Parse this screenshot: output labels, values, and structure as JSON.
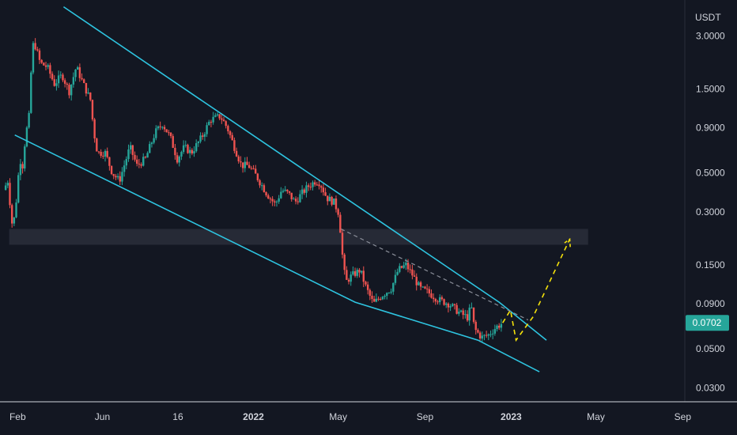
{
  "chart_data": {
    "type": "candlestick",
    "y_unit": "USDT",
    "y_scale": "log",
    "y_range": [
      0.025,
      4.8
    ],
    "x_range": [
      "2021-01-07",
      "2023-09-04"
    ],
    "price_ticks": [
      "3.0000",
      "1.5000",
      "0.9000",
      "0.5000",
      "0.3000",
      "0.1500",
      "0.0900",
      "0.0500",
      "0.0300"
    ],
    "time_ticks": [
      {
        "label": "Feb",
        "date": "2021-02-01",
        "bold": false
      },
      {
        "label": "Jun",
        "date": "2021-06-01",
        "bold": false
      },
      {
        "label": "16",
        "date": "2021-09-16",
        "bold": false
      },
      {
        "label": "2022",
        "date": "2022-01-01",
        "bold": true
      },
      {
        "label": "May",
        "date": "2022-05-01",
        "bold": false
      },
      {
        "label": "Sep",
        "date": "2022-09-01",
        "bold": false
      },
      {
        "label": "2023",
        "date": "2023-01-01",
        "bold": true
      },
      {
        "label": "May",
        "date": "2023-05-01",
        "bold": false
      },
      {
        "label": "Sep",
        "date": "2023-09-01",
        "bold": false
      }
    ],
    "last_price": {
      "value": 0.0702,
      "label": "0.0702"
    },
    "price_path": [
      [
        "2021-01-12",
        0.4
      ],
      [
        "2021-01-18",
        0.45
      ],
      [
        "2021-01-24",
        0.26
      ],
      [
        "2021-01-28",
        0.28
      ],
      [
        "2021-02-04",
        0.6
      ],
      [
        "2021-02-08",
        0.55
      ],
      [
        "2021-02-12",
        0.8
      ],
      [
        "2021-02-18",
        1.1
      ],
      [
        "2021-02-21",
        2.4
      ],
      [
        "2021-02-24",
        2.8
      ],
      [
        "2021-03-05",
        2.1
      ],
      [
        "2021-03-15",
        2.0
      ],
      [
        "2021-03-25",
        1.6
      ],
      [
        "2021-04-05",
        1.8
      ],
      [
        "2021-04-15",
        1.45
      ],
      [
        "2021-04-25",
        2.0
      ],
      [
        "2021-05-05",
        1.6
      ],
      [
        "2021-05-15",
        1.3
      ],
      [
        "2021-05-20",
        0.85
      ],
      [
        "2021-05-25",
        0.65
      ],
      [
        "2021-06-05",
        0.65
      ],
      [
        "2021-06-15",
        0.5
      ],
      [
        "2021-06-25",
        0.45
      ],
      [
        "2021-07-10",
        0.7
      ],
      [
        "2021-07-20",
        0.55
      ],
      [
        "2021-08-01",
        0.6
      ],
      [
        "2021-08-15",
        0.85
      ],
      [
        "2021-08-25",
        0.95
      ],
      [
        "2021-09-05",
        0.8
      ],
      [
        "2021-09-15",
        0.6
      ],
      [
        "2021-09-25",
        0.7
      ],
      [
        "2021-10-05",
        0.65
      ],
      [
        "2021-10-20",
        0.8
      ],
      [
        "2021-11-01",
        1.0
      ],
      [
        "2021-11-15",
        1.05
      ],
      [
        "2021-11-25",
        0.9
      ],
      [
        "2021-12-05",
        0.7
      ],
      [
        "2021-12-15",
        0.55
      ],
      [
        "2021-12-25",
        0.55
      ],
      [
        "2022-01-05",
        0.48
      ],
      [
        "2022-01-20",
        0.38
      ],
      [
        "2022-02-01",
        0.33
      ],
      [
        "2022-02-10",
        0.4
      ],
      [
        "2022-02-20",
        0.38
      ],
      [
        "2022-03-01",
        0.34
      ],
      [
        "2022-03-10",
        0.38
      ],
      [
        "2022-03-20",
        0.42
      ],
      [
        "2022-03-30",
        0.45
      ],
      [
        "2022-04-05",
        0.44
      ],
      [
        "2022-04-15",
        0.36
      ],
      [
        "2022-04-25",
        0.34
      ],
      [
        "2022-05-01",
        0.3
      ],
      [
        "2022-05-05",
        0.22
      ],
      [
        "2022-05-08",
        0.15
      ],
      [
        "2022-05-12",
        0.12
      ],
      [
        "2022-05-20",
        0.13
      ],
      [
        "2022-06-01",
        0.14
      ],
      [
        "2022-06-10",
        0.11
      ],
      [
        "2022-06-20",
        0.09
      ],
      [
        "2022-07-01",
        0.1
      ],
      [
        "2022-07-15",
        0.11
      ],
      [
        "2022-07-25",
        0.14
      ],
      [
        "2022-08-05",
        0.15
      ],
      [
        "2022-08-15",
        0.13
      ],
      [
        "2022-08-25",
        0.11
      ],
      [
        "2022-09-05",
        0.105
      ],
      [
        "2022-09-20",
        0.095
      ],
      [
        "2022-10-05",
        0.09
      ],
      [
        "2022-10-20",
        0.08
      ],
      [
        "2022-11-01",
        0.075
      ],
      [
        "2022-11-05",
        0.09
      ],
      [
        "2022-11-10",
        0.065
      ],
      [
        "2022-11-20",
        0.058
      ],
      [
        "2022-11-30",
        0.06
      ],
      [
        "2022-12-10",
        0.066
      ],
      [
        "2022-12-20",
        0.0702
      ]
    ],
    "annotations": {
      "upper_trendline": [
        [
          "2021-04-07",
          4.39
        ],
        [
          "2022-12-15",
          0.092
        ],
        [
          "2023-02-20",
          0.056
        ]
      ],
      "lower_trendline": [
        [
          "2021-01-28",
          0.82
        ],
        [
          "2022-05-25",
          0.092
        ],
        [
          "2022-11-15",
          0.056
        ],
        [
          "2023-02-10",
          0.037
        ]
      ],
      "dashed_resistance": [
        [
          "2022-05-05",
          0.24
        ],
        [
          "2023-01-25",
          0.073
        ]
      ],
      "support_zone": {
        "from": "2021-01-20",
        "to": "2023-04-20",
        "low": 0.195,
        "high": 0.24
      },
      "projection_path": [
        [
          "2022-12-20",
          0.0702
        ],
        [
          "2022-12-31",
          0.083
        ],
        [
          "2023-01-08",
          0.056
        ],
        [
          "2023-02-01",
          0.076
        ],
        [
          "2023-03-25",
          0.21
        ]
      ]
    }
  }
}
